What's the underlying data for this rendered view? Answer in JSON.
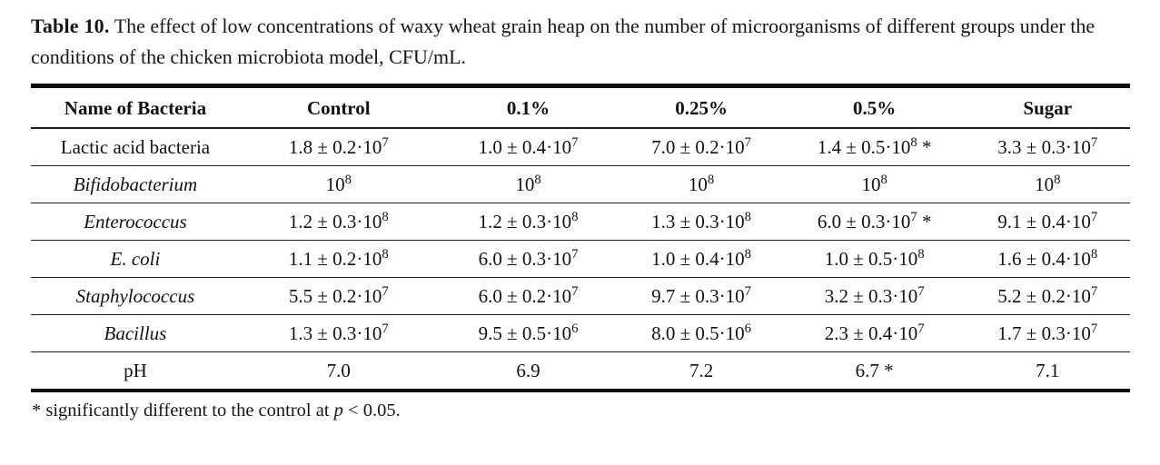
{
  "caption": {
    "label": "Table 10.",
    "text": "The effect of low concentrations of waxy wheat grain heap on the number of microorganisms of different groups under the conditions of the chicken microbiota model, CFU/mL."
  },
  "table": {
    "columns": [
      "Name of Bacteria",
      "Control",
      "0.1%",
      "0.25%",
      "0.5%",
      "Sugar"
    ],
    "rows": [
      {
        "label": "Lactic acid bacteria",
        "label_italic": false,
        "values": [
          "1.8 ± 0.2·10^7",
          "1.0 ± 0.4·10^7",
          "7.0 ± 0.2·10^7",
          "1.4 ± 0.5·10^8 *",
          "3.3 ± 0.3·10^7"
        ]
      },
      {
        "label": "Bifidobacterium",
        "label_italic": true,
        "values": [
          "10^8",
          "10^8",
          "10^8",
          "10^8",
          "10^8"
        ]
      },
      {
        "label": "Enterococcus",
        "label_italic": true,
        "values": [
          "1.2 ± 0.3·10^8",
          "1.2 ± 0.3·10^8",
          "1.3 ± 0.3·10^8",
          "6.0 ± 0.3·10^7 *",
          "9.1 ± 0.4·10^7"
        ]
      },
      {
        "label": "E. coli",
        "label_italic": true,
        "values": [
          "1.1 ± 0.2·10^8",
          "6.0 ± 0.3·10^7",
          "1.0 ± 0.4·10^8",
          "1.0 ± 0.5·10^8",
          "1.6 ± 0.4·10^8"
        ]
      },
      {
        "label": "Staphylococcus",
        "label_italic": true,
        "values": [
          "5.5 ± 0.2·10^7",
          "6.0 ± 0.2·10^7",
          "9.7 ± 0.3·10^7",
          "3.2 ± 0.3·10^7",
          "5.2 ± 0.2·10^7"
        ]
      },
      {
        "label": "Bacillus",
        "label_italic": true,
        "values": [
          "1.3 ± 0.3·10^7",
          "9.5 ± 0.5·10^6",
          "8.0 ± 0.5·10^6",
          "2.3 ± 0.4·10^7",
          "1.7 ± 0.3·10^7"
        ]
      },
      {
        "label": "pH",
        "label_italic": false,
        "values": [
          "7.0",
          "6.9",
          "7.2",
          "6.7 *",
          "7.1"
        ]
      }
    ]
  },
  "footnote": {
    "marker": "*",
    "text_before": " significantly different to the control at ",
    "italic_part": "p",
    "text_after": " < 0.05."
  }
}
